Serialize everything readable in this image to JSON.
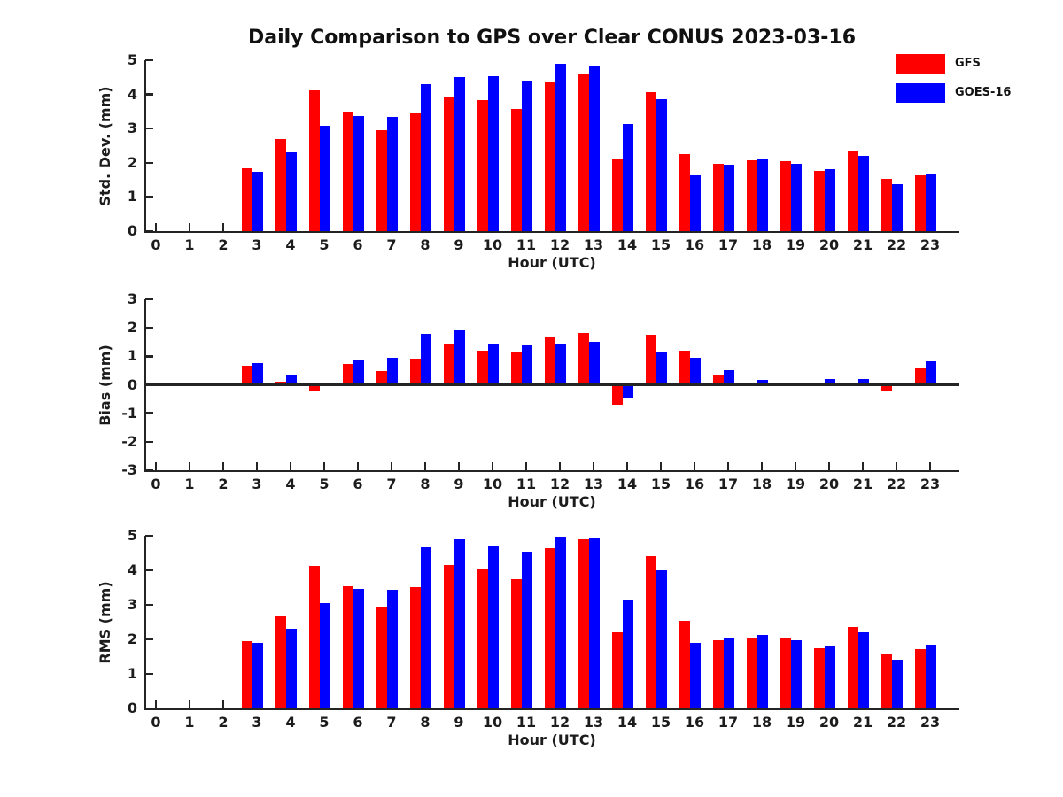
{
  "title": "Daily Comparison to GPS over Clear CONUS 2023-03-16",
  "colors": {
    "gfs": "#ff0000",
    "goes16": "#0000ff",
    "axis": "#242424",
    "text": "#1c1c1c"
  },
  "legend": {
    "items": [
      {
        "label": "GFS",
        "color": "#ff0000"
      },
      {
        "label": "GOES-16",
        "color": "#0000ff"
      }
    ]
  },
  "chart_data": [
    {
      "type": "bar",
      "name": "std-dev",
      "ylabel": "Std. Dev. (mm)",
      "xlabel": "Hour (UTC)",
      "ylim": [
        0,
        5
      ],
      "yticks": [
        0,
        1,
        2,
        3,
        4,
        5
      ],
      "categories": [
        0,
        1,
        2,
        3,
        4,
        5,
        6,
        7,
        8,
        9,
        10,
        11,
        12,
        13,
        14,
        15,
        16,
        17,
        18,
        19,
        20,
        21,
        22,
        23
      ],
      "series": [
        {
          "name": "GFS",
          "color": "#ff0000",
          "values": [
            null,
            null,
            null,
            1.85,
            2.7,
            4.11,
            3.49,
            2.96,
            3.44,
            3.9,
            3.84,
            3.58,
            4.35,
            4.61,
            2.09,
            4.07,
            2.26,
            1.98,
            2.07,
            2.04,
            1.75,
            2.35,
            1.54,
            1.62
          ]
        },
        {
          "name": "GOES-16",
          "color": "#0000ff",
          "values": [
            null,
            null,
            null,
            1.74,
            2.3,
            3.07,
            3.38,
            3.34,
            4.31,
            4.52,
            4.53,
            4.38,
            4.9,
            4.83,
            3.13,
            3.86,
            1.64,
            1.95,
            2.09,
            1.96,
            1.81,
            2.21,
            1.38,
            1.67
          ]
        }
      ]
    },
    {
      "type": "bar",
      "name": "bias",
      "ylabel": "Bias (mm)",
      "xlabel": "Hour (UTC)",
      "ylim": [
        -3,
        3
      ],
      "yticks": [
        -3,
        -2,
        -1,
        0,
        1,
        2,
        3
      ],
      "zero_line": true,
      "categories": [
        0,
        1,
        2,
        3,
        4,
        5,
        6,
        7,
        8,
        9,
        10,
        11,
        12,
        13,
        14,
        15,
        16,
        17,
        18,
        19,
        20,
        21,
        22,
        23
      ],
      "series": [
        {
          "name": "GFS",
          "color": "#ff0000",
          "values": [
            null,
            null,
            null,
            0.67,
            0.12,
            -0.24,
            0.74,
            0.48,
            0.92,
            1.42,
            1.21,
            1.16,
            1.66,
            1.81,
            -0.7,
            1.76,
            1.19,
            0.32,
            0.02,
            -0.06,
            0.05,
            -0.04,
            -0.24,
            0.57
          ]
        },
        {
          "name": "GOES-16",
          "color": "#0000ff",
          "values": [
            null,
            null,
            null,
            0.77,
            0.36,
            0.04,
            0.9,
            0.96,
            1.78,
            1.92,
            1.41,
            1.37,
            1.46,
            1.51,
            -0.46,
            1.13,
            0.95,
            0.52,
            0.16,
            0.08,
            0.21,
            0.2,
            0.07,
            0.82
          ]
        }
      ]
    },
    {
      "type": "bar",
      "name": "rms",
      "ylabel": "RMS (mm)",
      "xlabel": "Hour (UTC)",
      "ylim": [
        0,
        5
      ],
      "yticks": [
        0,
        1,
        2,
        3,
        4,
        5
      ],
      "categories": [
        0,
        1,
        2,
        3,
        4,
        5,
        6,
        7,
        8,
        9,
        10,
        11,
        12,
        13,
        14,
        15,
        16,
        17,
        18,
        19,
        20,
        21,
        22,
        23
      ],
      "series": [
        {
          "name": "GFS",
          "color": "#ff0000",
          "values": [
            null,
            null,
            null,
            1.95,
            2.67,
            4.12,
            3.55,
            2.95,
            3.52,
            4.15,
            4.02,
            3.75,
            4.63,
            4.9,
            2.21,
            4.41,
            2.54,
            1.98,
            2.06,
            2.03,
            1.75,
            2.36,
            1.57,
            1.72
          ]
        },
        {
          "name": "GOES-16",
          "color": "#0000ff",
          "values": [
            null,
            null,
            null,
            1.9,
            2.31,
            3.06,
            3.46,
            3.44,
            4.66,
            4.89,
            4.72,
            4.55,
            4.98,
            4.96,
            3.15,
            4.0,
            1.91,
            2.04,
            2.12,
            1.98,
            1.83,
            2.21,
            1.41,
            1.85
          ]
        }
      ]
    }
  ]
}
